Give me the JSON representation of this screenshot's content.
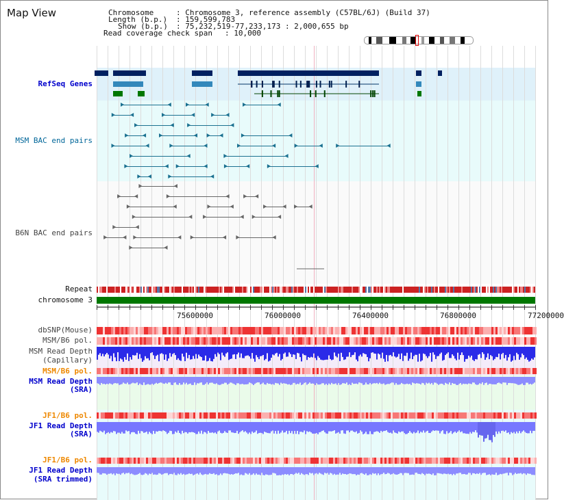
{
  "title": "Map View",
  "header": {
    "chromosome_key": "Chromosome",
    "chromosome_value": ": Chromosome 3, reference assembly (C57BL/6J) (Build 37)",
    "length_key": "Length (b.p.)",
    "length_value": ": 159,599,783",
    "show_key": "Show (b.p.)",
    "show_value": ": 75,232,519-77,233,173 : 2,000,655 bp",
    "read_coverage_key": "Read coverage check span",
    "read_coverage_value": ": 10,000"
  },
  "tracks": {
    "refseq": {
      "label": "RefSeq Genes",
      "color": "#0000cc"
    },
    "msm_bac": {
      "label": "MSM BAC end pairs",
      "color": "#006699"
    },
    "b6n_bac": {
      "label": "B6N BAC end pairs",
      "color": "#444444"
    },
    "repeat": {
      "label": "Repeat"
    },
    "chromosome": {
      "label": "chromosome 3"
    },
    "dbsnp": {
      "label": "dbSNP(Mouse)"
    },
    "msm_b6_pol_1": {
      "label": "MSM/B6 pol."
    },
    "msm_depth_cap_1": {
      "label": "MSM Read Depth"
    },
    "msm_depth_cap_2": {
      "label": "(Capillary)"
    },
    "msm_b6_pol_2": {
      "label": "MSM/B6 pol.",
      "color": "#ff9900"
    },
    "msm_depth_sra_1": {
      "label": "MSM Read Depth",
      "color": "#0000cc"
    },
    "msm_depth_sra_2": {
      "label": "(SRA)",
      "color": "#0000cc"
    },
    "jf1_b6_pol_1": {
      "label": "JF1/B6 pol.",
      "color": "#ff9900"
    },
    "jf1_depth_1": {
      "label": "JF1 Read Depth",
      "color": "#0000cc"
    },
    "jf1_depth_2": {
      "label": "(SRA)",
      "color": "#0000cc"
    },
    "jf1_b6_pol_2": {
      "label": "JF1/B6 pol.",
      "color": "#ff9900"
    },
    "jf1_depth_trim_1": {
      "label": "JF1 Read Depth",
      "color": "#0000cc"
    },
    "jf1_depth_trim_2": {
      "label": "(SRA trimmed)",
      "color": "#0000cc"
    }
  },
  "axis": {
    "ticks": [
      "75600000",
      "76000000",
      "76400000",
      "76800000",
      "77200000"
    ]
  },
  "colors": {
    "refseq_dark": "#002060",
    "refseq_mid": "#3388bb",
    "refseq_green": "#007700",
    "msm_teal": "#1a7090",
    "b6n_gray": "#666666",
    "chromosome_green": "#007700",
    "repeat_red": "#cc1111",
    "depth_blue": "#2222ee",
    "depth_light": "#8888ff",
    "pol_red": "#ee3333",
    "pol_pink": "#ffbbbb"
  }
}
